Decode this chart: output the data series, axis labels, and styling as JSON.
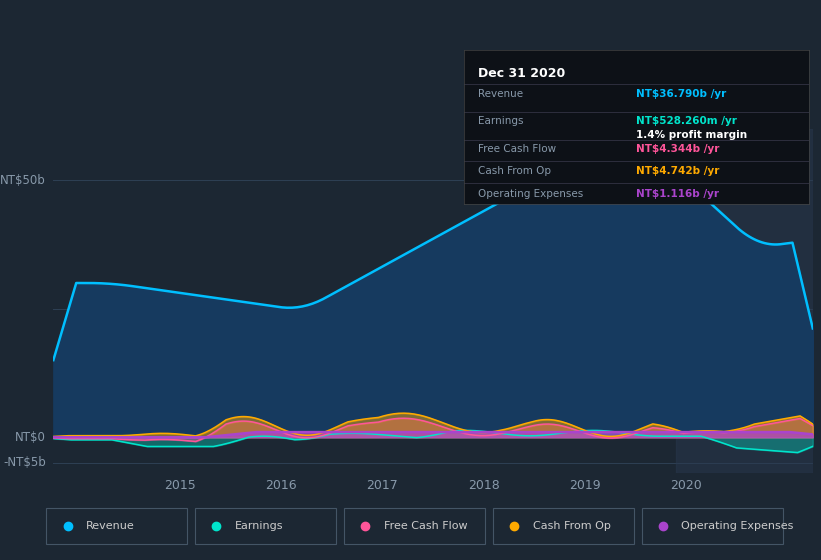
{
  "bg_color": "#1c2733",
  "plot_bg_color": "#1c2733",
  "text_color": "#8899aa",
  "title_color": "#ffffff",
  "grid_color": "#2a3a4a",
  "xlim_start": 2013.75,
  "xlim_end": 2021.25,
  "ylim_min": -7,
  "ylim_max": 60,
  "revenue_color": "#00bfff",
  "revenue_fill": "#1a4a6a",
  "earnings_color": "#00e5cc",
  "fcf_color": "#ff5599",
  "cashfromop_color": "#ffaa00",
  "opex_color": "#aa44cc",
  "legend_items": [
    "Revenue",
    "Earnings",
    "Free Cash Flow",
    "Cash From Op",
    "Operating Expenses"
  ],
  "info_box_bg": "#0d1117",
  "info_box": {
    "title": "Dec 31 2020",
    "revenue_label": "Revenue",
    "revenue_val": "NT$36.790b /yr",
    "earnings_label": "Earnings",
    "earnings_val": "NT$528.260m /yr",
    "profit_margin": "1.4% profit margin",
    "fcf_label": "Free Cash Flow",
    "fcf_val": "NT$4.344b /yr",
    "cashop_label": "Cash From Op",
    "cashop_val": "NT$4.742b /yr",
    "opex_label": "Operating Expenses",
    "opex_val": "NT$1.116b /yr"
  }
}
